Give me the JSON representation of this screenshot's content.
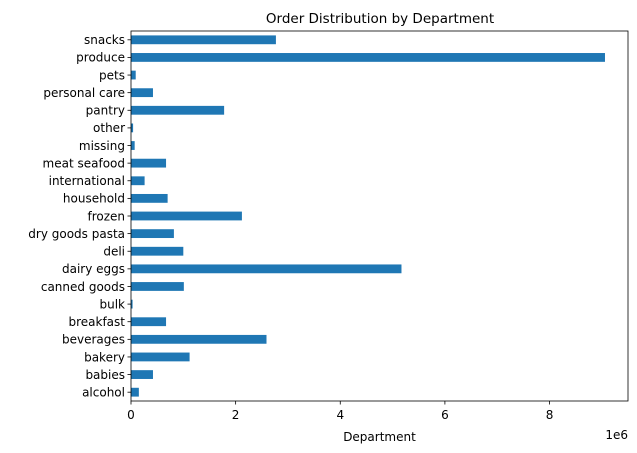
{
  "chart_data": {
    "type": "bar",
    "orientation": "horizontal",
    "title": "Order Distribution by Department",
    "xlabel": "Department",
    "ylabel": "",
    "x_scale_label": "1e6",
    "xlim": [
      0,
      9.5
    ],
    "x_ticks": [
      0,
      2,
      4,
      6,
      8
    ],
    "x_tick_labels": [
      "0",
      "2",
      "4",
      "6",
      "8"
    ],
    "grid": false,
    "legend": "none",
    "bar_color": "#1f77b4",
    "categories": [
      "alcohol",
      "babies",
      "bakery",
      "beverages",
      "breakfast",
      "bulk",
      "canned goods",
      "dairy eggs",
      "deli",
      "dry goods pasta",
      "frozen",
      "household",
      "international",
      "meat seafood",
      "missing",
      "other",
      "pantry",
      "personal care",
      "pets",
      "produce",
      "snacks"
    ],
    "values": [
      0.15,
      0.42,
      1.12,
      2.59,
      0.67,
      0.03,
      1.01,
      5.17,
      1.0,
      0.82,
      2.12,
      0.7,
      0.26,
      0.67,
      0.07,
      0.04,
      1.78,
      0.42,
      0.09,
      9.06,
      2.77
    ]
  }
}
